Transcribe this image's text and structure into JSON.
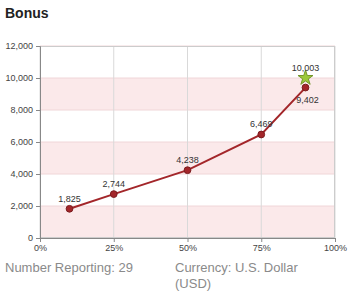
{
  "chart_data": {
    "type": "line",
    "title": "Bonus",
    "x": [
      10,
      25,
      50,
      75,
      90
    ],
    "series": [
      {
        "color": "#a3262a",
        "marker": "circle",
        "line_style": "solid",
        "values": [
          1825,
          2744,
          4238,
          6469,
          9402
        ],
        "value_labels": [
          "1,825",
          "2,744",
          "4,238",
          "6,469",
          "9,402"
        ]
      },
      {
        "color": "#9bc93b",
        "marker": "star",
        "line_style": "none",
        "values": [
          null,
          null,
          null,
          null,
          10003
        ],
        "value_labels": [
          null,
          null,
          null,
          null,
          "10,003"
        ]
      }
    ],
    "xlim": [
      0,
      100
    ],
    "xticks": [
      {
        "value": 0,
        "label": "0%"
      },
      {
        "value": 25,
        "label": "25%"
      },
      {
        "value": 50,
        "label": "50%"
      },
      {
        "value": 75,
        "label": "75%"
      },
      {
        "value": 100,
        "label": "100%"
      }
    ],
    "ylim": [
      0,
      12000
    ],
    "yticks": [
      0,
      {
        "value": 2000,
        "label": "2,000"
      },
      {
        "value": 4000,
        "label": "4,000"
      },
      {
        "value": 6000,
        "label": "6,000"
      },
      {
        "value": 8000,
        "label": "8,000"
      },
      {
        "value": 10000,
        "label": "10,000"
      },
      {
        "value": 12000,
        "label": "12,000"
      }
    ],
    "grid": true,
    "data_labels": true,
    "annotations": [
      "Number Reporting: 29",
      "Currency: U.S. Dollar (USD)"
    ]
  }
}
